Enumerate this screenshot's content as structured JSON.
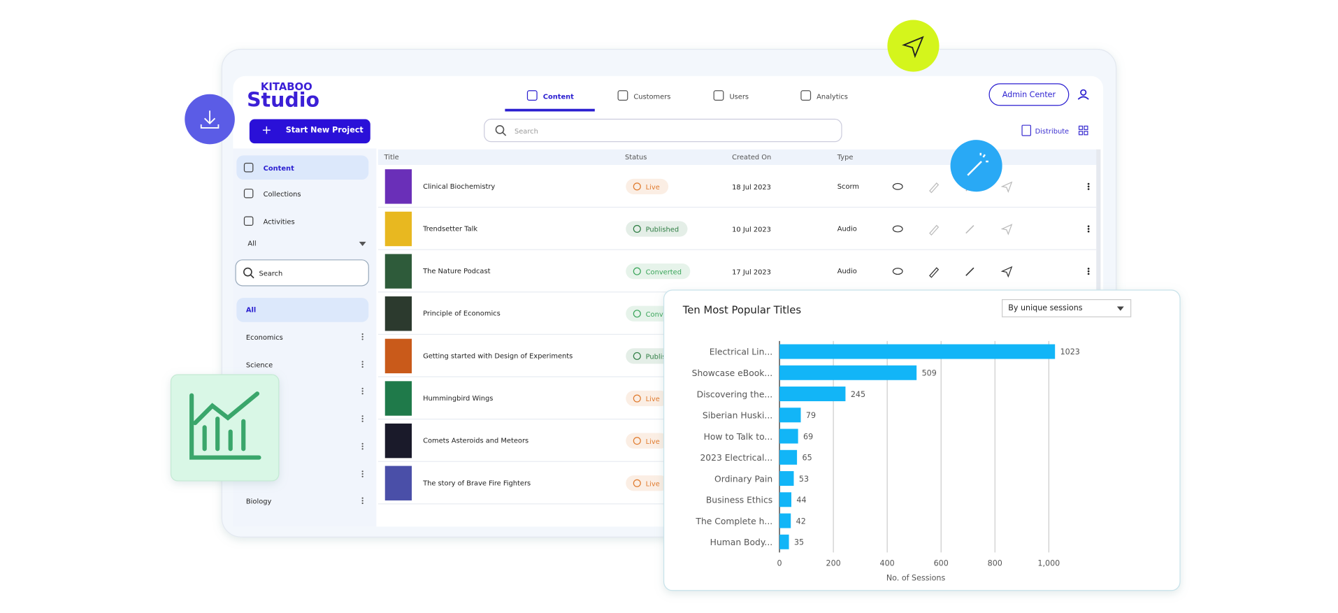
{
  "header": {
    "logo_top": "KITABOO",
    "logo_main": "Studio",
    "tabs": [
      "Content",
      "Customers",
      "Users",
      "Analytics"
    ],
    "admin_button": "Admin Center"
  },
  "toolbar": {
    "new_project": "Start New Project",
    "search_placeholder": "Search",
    "distribute": "Distribute"
  },
  "sidebar": {
    "nav": [
      "Content",
      "Collections",
      "Activities"
    ],
    "filter": "All",
    "search_placeholder": "Search",
    "categories": [
      "All",
      "Economics",
      "Science",
      "Biology"
    ]
  },
  "table": {
    "headers": [
      "Title",
      "Status",
      "Created On",
      "Type"
    ],
    "rows": [
      {
        "title": "Clinical Biochemistry",
        "status": "Live",
        "status_color": "#e07b2e",
        "date": "18 Jul 2023",
        "type": "Scorm"
      },
      {
        "title": "Trendsetter Talk",
        "status": "Published",
        "status_color": "#2e7d43",
        "date": "10 Jul 2023",
        "type": "Audio"
      },
      {
        "title": "The Nature Podcast",
        "status": "Converted",
        "status_color": "#3aa55a",
        "date": "17 Jul 2023",
        "type": "Audio"
      },
      {
        "title": "Principle of Economics",
        "status": "Converted",
        "status_color": "#3aa55a"
      },
      {
        "title": "Getting started with Design of Experiments",
        "status": "Published",
        "status_color": "#2e7d43"
      },
      {
        "title": "Hummingbird Wings",
        "status": "Live",
        "status_color": "#e07b2e"
      },
      {
        "title": "Comets Asteroids and Meteors",
        "status": "Live",
        "status_color": "#e07b2e"
      },
      {
        "title": "The story of Brave Fire Fighters",
        "status": "Live",
        "status_color": "#e07b2e"
      }
    ]
  },
  "chart_data": {
    "type": "hbar",
    "title": "Ten Most Popular Titles",
    "dropdown": "By unique sessions",
    "categories": [
      "Electrical Lin...",
      "Showcase eBook...",
      "Discovering the...",
      "Siberian Huski...",
      "How to Talk to...",
      "2023 Electrical...",
      "Ordinary Pain",
      "Business Ethics",
      "The Complete h...",
      "Human Body..."
    ],
    "values": [
      1023,
      509,
      245,
      79,
      69,
      65,
      53,
      44,
      42,
      35
    ],
    "color": "#12b5f7",
    "xlim": [
      0,
      1025
    ],
    "xticks": [
      0,
      200,
      400,
      600,
      800,
      {
        "value": 1000,
        "label": "1,000"
      }
    ],
    "xlabel": "No. of Sessions",
    "grid": true
  }
}
